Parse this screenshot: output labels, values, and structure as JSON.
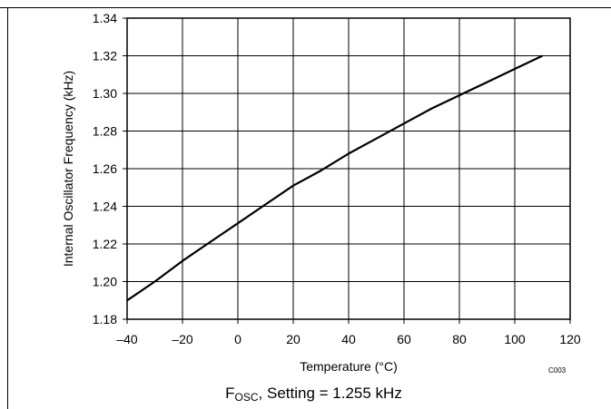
{
  "chart_data": {
    "type": "line",
    "title": "",
    "xlabel": "Temperature (°C)",
    "ylabel": "Internal Oscillator Frequency (kHz)",
    "xlim": [
      -40,
      120
    ],
    "ylim": [
      1.18,
      1.34
    ],
    "xticks": [
      -40,
      -20,
      0,
      20,
      40,
      60,
      80,
      100,
      120
    ],
    "xtick_labels": [
      "–40",
      "–20",
      "0",
      "20",
      "40",
      "60",
      "80",
      "100",
      "120"
    ],
    "yticks": [
      1.18,
      1.2,
      1.22,
      1.24,
      1.26,
      1.28,
      1.3,
      1.32,
      1.34
    ],
    "ytick_labels": [
      "1.18",
      "1.20",
      "1.22",
      "1.24",
      "1.26",
      "1.28",
      "1.30",
      "1.32",
      "1.34"
    ],
    "grid": true,
    "legend": "none",
    "series": [
      {
        "color": "#000000",
        "x": [
          -40,
          -30,
          -20,
          -10,
          0,
          10,
          20,
          30,
          40,
          50,
          60,
          70,
          80,
          90,
          100,
          110
        ],
        "y": [
          1.19,
          1.2,
          1.211,
          1.221,
          1.231,
          1.241,
          1.251,
          1.259,
          1.268,
          1.276,
          1.284,
          1.292,
          1.299,
          1.306,
          1.313,
          1.32
        ]
      }
    ]
  },
  "figure_id": "C003",
  "caption": {
    "symbol_main": "F",
    "symbol_sub": "OSC",
    "rest": ", Setting = 1.255 kHz"
  }
}
